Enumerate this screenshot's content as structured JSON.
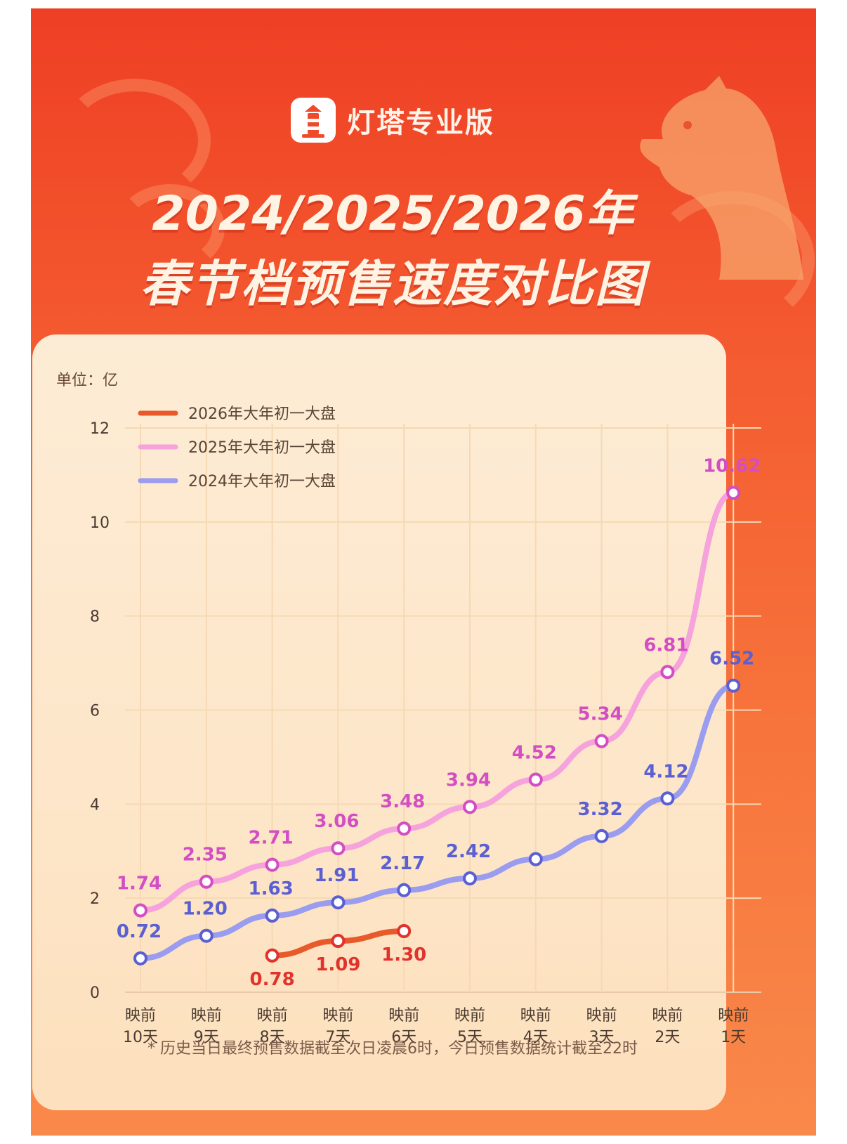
{
  "brand": {
    "name": "灯塔专业版",
    "logo_icon": "lighthouse-icon"
  },
  "title": {
    "line1": "2024/2025/2026年",
    "line2": "春节档预售速度对比图"
  },
  "unit_label": "单位：亿",
  "footnote": "* 历史当日最终预售数据截至次日凌晨6时，今日预售数据统计截至22时",
  "colors": {
    "s2026": "#e85a2c",
    "s2026_label": "#e0332c",
    "s2025": "#f6a2dc",
    "s2025_label": "#d34ec3",
    "s2024": "#9a9cf0",
    "s2024_label": "#5a5fd2",
    "axis": "#4a3a30"
  },
  "chart_data": {
    "type": "line",
    "categories": [
      [
        "映前",
        "10天"
      ],
      [
        "映前",
        "9天"
      ],
      [
        "映前",
        "8天"
      ],
      [
        "映前",
        "7天"
      ],
      [
        "映前",
        "6天"
      ],
      [
        "映前",
        "5天"
      ],
      [
        "映前",
        "4天"
      ],
      [
        "映前",
        "3天"
      ],
      [
        "映前",
        "2天"
      ],
      [
        "映前",
        "1天"
      ]
    ],
    "ylim": [
      0,
      12
    ],
    "yticks": [
      "0",
      "2",
      "4",
      "6",
      "8",
      "10",
      "12"
    ],
    "grid": true,
    "legend_position": "top-left",
    "series": [
      {
        "name": "2026年大年初一大盘",
        "key": "s2026",
        "values": [
          null,
          null,
          0.78,
          1.09,
          1.3,
          null,
          null,
          null,
          null,
          null
        ],
        "labels": [
          null,
          null,
          "0.78",
          "1.09",
          "1.30",
          null,
          null,
          null,
          null,
          null
        ]
      },
      {
        "name": "2025年大年初一大盘",
        "key": "s2025",
        "values": [
          1.74,
          2.35,
          2.71,
          3.06,
          3.48,
          3.94,
          4.52,
          5.34,
          6.81,
          10.62
        ],
        "labels": [
          "1.74",
          "2.35",
          "2.71",
          "3.06",
          "3.48",
          "3.94",
          "4.52",
          "5.34",
          "6.81",
          "10.62"
        ]
      },
      {
        "name": "2024年大年初一大盘",
        "key": "s2024",
        "values": [
          0.72,
          1.2,
          1.63,
          1.91,
          2.17,
          2.42,
          2.83,
          3.32,
          4.12,
          6.52
        ],
        "labels": [
          "0.72",
          "1.20",
          "1.63",
          "1.91",
          "2.17",
          "2.42",
          null,
          "3.32",
          "4.12",
          "6.52"
        ]
      }
    ]
  }
}
